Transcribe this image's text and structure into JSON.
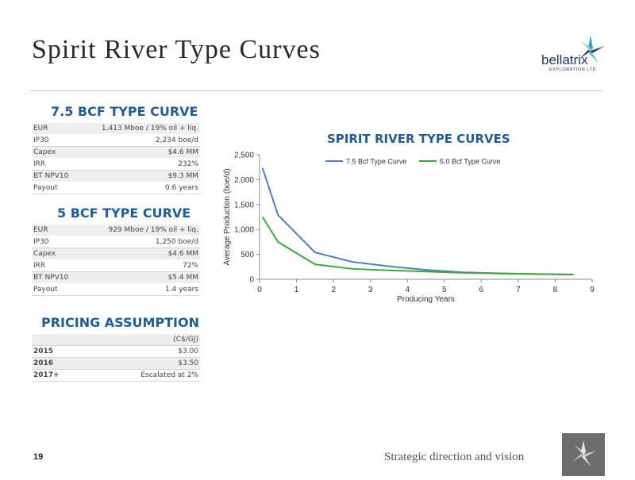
{
  "slide": {
    "title": "Spirit River Type Curves",
    "page_number": "19",
    "footer": "Strategic direction and vision"
  },
  "logo": {
    "name": "bellatrix",
    "tagline": "EXPLORATION LTD",
    "color": "#1f3a68",
    "accent": "#2aa6c9"
  },
  "curve_75": {
    "heading": "7.5 BCF TYPE CURVE",
    "rows": [
      {
        "label": "EUR",
        "value": "1,413 Mboe / 19% oil + liq."
      },
      {
        "label": "IP30",
        "value": "2,234 boe/d"
      },
      {
        "label": "Capex",
        "value": "$4.6 MM"
      },
      {
        "label": "IRR",
        "value": "232%"
      },
      {
        "label": "BT NPV10",
        "value": "$9.3 MM"
      },
      {
        "label": "Payout",
        "value": "0.6 years"
      }
    ]
  },
  "curve_5": {
    "heading": "5 BCF TYPE CURVE",
    "rows": [
      {
        "label": "EUR",
        "value": "929 Mboe / 19% oil + liq."
      },
      {
        "label": "IP30",
        "value": "1,250 boe/d"
      },
      {
        "label": "Capex",
        "value": "$4.6 MM"
      },
      {
        "label": "IRR",
        "value": "72%"
      },
      {
        "label": "BT NPV10",
        "value": "$5.4 MM"
      },
      {
        "label": "Payout",
        "value": "1.4 years"
      }
    ]
  },
  "pricing": {
    "heading": "PRICING ASSUMPTION",
    "unit_header": "(C$/GJ)",
    "rows": [
      {
        "label": "2015",
        "value": "$3.00"
      },
      {
        "label": "2016",
        "value": "$3.50"
      },
      {
        "label": "2017+",
        "value": "Escalated at 2%"
      }
    ]
  },
  "chart_data": {
    "type": "line",
    "title": "SPIRIT RIVER TYPE CURVES",
    "xlabel": "Producing Years",
    "ylabel": "Average Production (boe/d)",
    "xlim": [
      0,
      9
    ],
    "ylim": [
      0,
      2500
    ],
    "x_ticks": [
      "0",
      "1",
      "2",
      "3",
      "4",
      "5",
      "6",
      "7",
      "8",
      "9"
    ],
    "y_ticks": [
      "0",
      "500",
      "1,000",
      "1,500",
      "2,000",
      "2,500"
    ],
    "grid": false,
    "legend_position": "top",
    "series": [
      {
        "name": "7.5 Bcf Type Curve",
        "color": "#4f81bd",
        "x": [
          0.08,
          0.5,
          1.5,
          2.5,
          3.5,
          4.5,
          5.5,
          6.5,
          7.5,
          8.5
        ],
        "y": [
          2234,
          1290,
          540,
          350,
          260,
          190,
          140,
          120,
          105,
          95
        ]
      },
      {
        "name": "5.0 Bcf Type Curve",
        "color": "#3aab3a",
        "x": [
          0.08,
          0.5,
          1.5,
          2.5,
          3.5,
          4.5,
          5.5,
          6.5,
          7.5,
          8.5
        ],
        "y": [
          1250,
          750,
          300,
          210,
          180,
          155,
          130,
          115,
          105,
          95
        ]
      }
    ]
  }
}
